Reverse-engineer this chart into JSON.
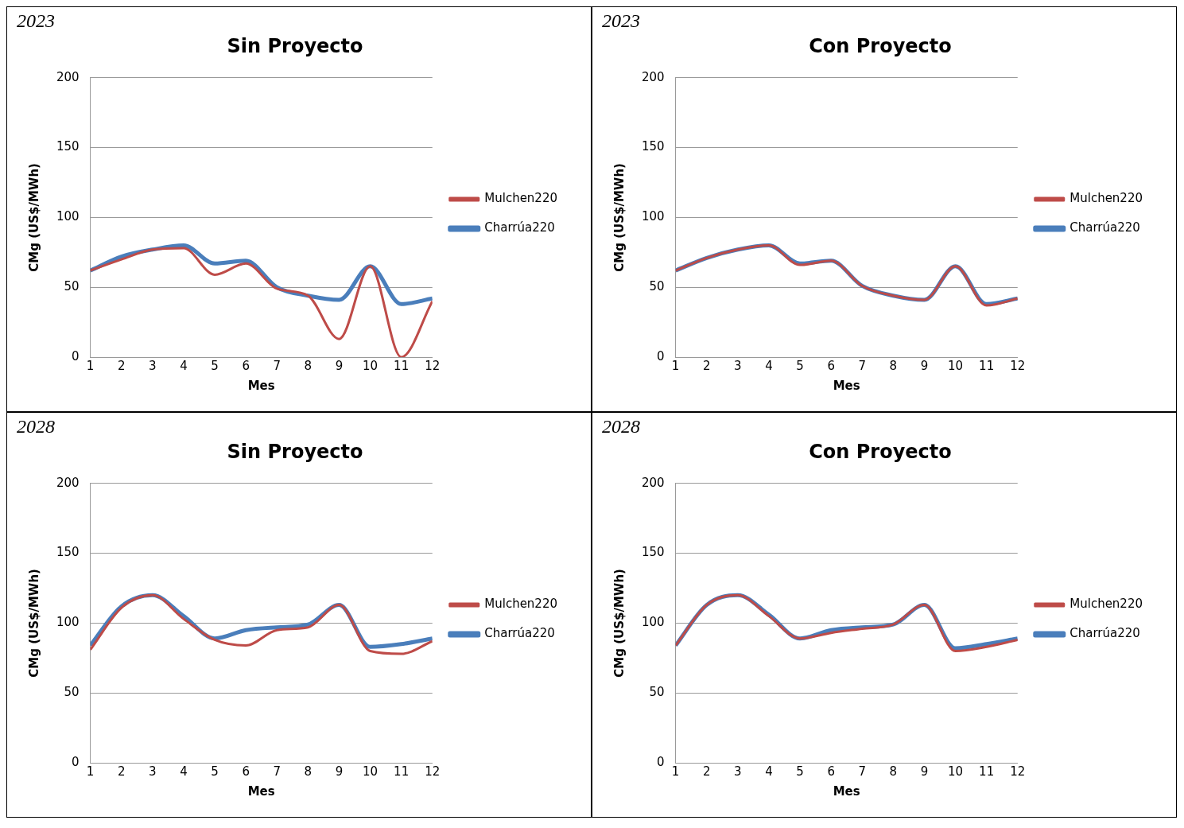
{
  "chart_data": [
    {
      "type": "line",
      "annotations": [
        "2023"
      ],
      "title": "Sin Proyecto",
      "xlabel": "Mes",
      "ylabel": "CMg (US$/MWh)",
      "x": [
        1,
        2,
        3,
        4,
        5,
        6,
        7,
        8,
        9,
        10,
        11,
        12
      ],
      "xlim": [
        1,
        12
      ],
      "xticks": [
        1,
        2,
        3,
        4,
        5,
        6,
        7,
        8,
        9,
        10,
        11,
        12
      ],
      "ylim": [
        0,
        200
      ],
      "yticks": [
        0,
        50,
        100,
        150,
        200
      ],
      "grid": "y",
      "legend": "right",
      "marker": "none",
      "line_style": "solid",
      "series": [
        {
          "name": "Charrúa220",
          "color": "#4a7ebb",
          "values": [
            62,
            72,
            77,
            80,
            67,
            69,
            50,
            44,
            41,
            65,
            38,
            42
          ]
        },
        {
          "name": "Mulchen220",
          "color": "#be4b48",
          "values": [
            62,
            70,
            77,
            78,
            59,
            67,
            49,
            44,
            13,
            65,
            0,
            40
          ]
        }
      ]
    },
    {
      "type": "line",
      "annotations": [
        "2023"
      ],
      "title": "Con Proyecto",
      "xlabel": "Mes",
      "ylabel": "CMg (US$/MWh)",
      "x": [
        1,
        2,
        3,
        4,
        5,
        6,
        7,
        8,
        9,
        10,
        11,
        12
      ],
      "xlim": [
        1,
        12
      ],
      "xticks": [
        1,
        2,
        3,
        4,
        5,
        6,
        7,
        8,
        9,
        10,
        11,
        12
      ],
      "ylim": [
        0,
        200
      ],
      "yticks": [
        0,
        50,
        100,
        150,
        200
      ],
      "grid": "y",
      "legend": "right",
      "marker": "none",
      "line_style": "solid",
      "series": [
        {
          "name": "Charrúa220",
          "color": "#4a7ebb",
          "values": [
            62,
            71,
            77,
            80,
            67,
            69,
            51,
            44,
            41,
            65,
            38,
            42
          ]
        },
        {
          "name": "Mulchen220",
          "color": "#be4b48",
          "values": [
            62,
            71,
            77,
            80,
            66,
            69,
            51,
            44,
            41,
            65,
            37,
            42
          ]
        }
      ]
    },
    {
      "type": "line",
      "annotations": [
        "2028"
      ],
      "title": "Sin Proyecto",
      "xlabel": "Mes",
      "ylabel": "CMg (US$/MWh)",
      "x": [
        1,
        2,
        3,
        4,
        5,
        6,
        7,
        8,
        9,
        10,
        11,
        12
      ],
      "xlim": [
        1,
        12
      ],
      "xticks": [
        1,
        2,
        3,
        4,
        5,
        6,
        7,
        8,
        9,
        10,
        11,
        12
      ],
      "ylim": [
        0,
        200
      ],
      "yticks": [
        0,
        50,
        100,
        150,
        200
      ],
      "grid": "y",
      "legend": "right",
      "marker": "none",
      "line_style": "solid",
      "series": [
        {
          "name": "Charrúa220",
          "color": "#4a7ebb",
          "values": [
            84,
            112,
            120,
            105,
            89,
            95,
            97,
            99,
            113,
            83,
            85,
            89
          ]
        },
        {
          "name": "Mulchen220",
          "color": "#be4b48",
          "values": [
            81,
            111,
            120,
            103,
            88,
            84,
            95,
            97,
            113,
            80,
            78,
            87
          ]
        }
      ]
    },
    {
      "type": "line",
      "annotations": [
        "2028"
      ],
      "title": "Con Proyecto",
      "xlabel": "Mes",
      "ylabel": "CMg (US$/MWh)",
      "x": [
        1,
        2,
        3,
        4,
        5,
        6,
        7,
        8,
        9,
        10,
        11,
        12
      ],
      "xlim": [
        1,
        12
      ],
      "xticks": [
        1,
        2,
        3,
        4,
        5,
        6,
        7,
        8,
        9,
        10,
        11,
        12
      ],
      "ylim": [
        0,
        200
      ],
      "yticks": [
        0,
        50,
        100,
        150,
        200
      ],
      "grid": "y",
      "legend": "right",
      "marker": "none",
      "line_style": "solid",
      "series": [
        {
          "name": "Charrúa220",
          "color": "#4a7ebb",
          "values": [
            84,
            113,
            120,
            106,
            89,
            95,
            97,
            99,
            113,
            82,
            85,
            89
          ]
        },
        {
          "name": "Mulchen220",
          "color": "#be4b48",
          "values": [
            84,
            113,
            120,
            105,
            89,
            93,
            96,
            99,
            113,
            80,
            83,
            88
          ]
        }
      ]
    }
  ]
}
